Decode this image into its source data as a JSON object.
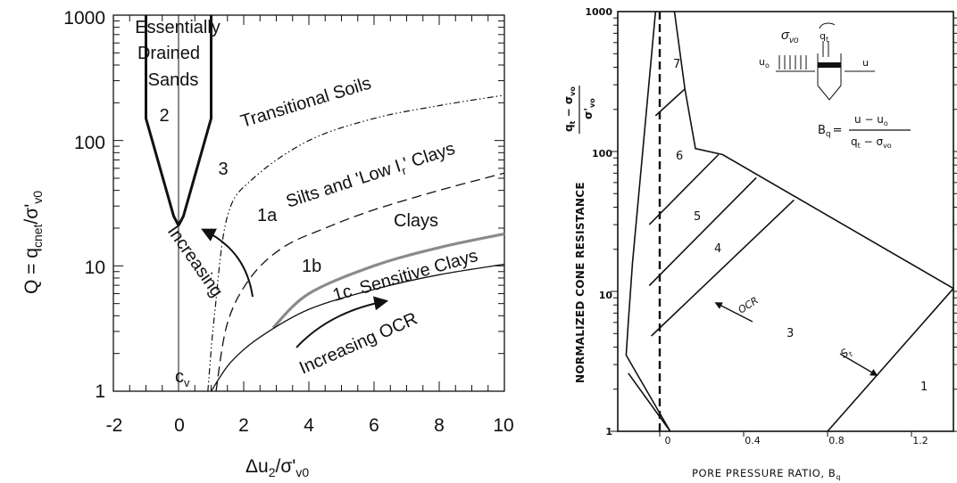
{
  "chart_data": [
    {
      "type": "line",
      "title": "",
      "xlabel_main": "Δu",
      "xlabel_sub1": "2",
      "xlabel_mid": "/σ'",
      "xlabel_sub2": "v0",
      "ylabel_main": "Q = q",
      "ylabel_sub1": "cnet",
      "ylabel_mid": "/σ'",
      "ylabel_sub2": "v0",
      "yscale": "log",
      "xlim": [
        -2,
        10
      ],
      "ylim": [
        1,
        1000
      ],
      "x_ticks": [
        "-2",
        "0",
        "2",
        "4",
        "6",
        "8",
        "10"
      ],
      "x_tick_values": [
        -2,
        0,
        2,
        4,
        6,
        8,
        10
      ],
      "y_ticks": [
        "1",
        "10",
        "100",
        "1000"
      ],
      "y_tick_values": [
        1,
        10,
        100,
        1000
      ],
      "zone_labels": {
        "essentially": "Essentially",
        "drained": "Drained",
        "sands": "Sands",
        "zone2": "2",
        "zone3": "3",
        "transitional": "Transitional Soils",
        "zone1a": "1a",
        "silts": "Silts and 'Low I",
        "silts_sub": "r",
        "silts_end": "' Clays",
        "clays": "Clays",
        "zone1b": "1b",
        "zone1c": "1c",
        "sensitive": "Sensitive Clays",
        "increasing_cv": "Increasing",
        "cv_main": "c",
        "cv_sub": "v",
        "increasing_ocr": "Increasing OCR"
      },
      "boundaries": {
        "zone2_left": [
          {
            "x": -1.0,
            "y": 1000
          },
          {
            "x": -1.0,
            "y": 150
          },
          {
            "x": -0.15,
            "y": 25
          },
          {
            "x": 0,
            "y": 21
          }
        ],
        "zone2_right": [
          {
            "x": 1.0,
            "y": 1000
          },
          {
            "x": 1.0,
            "y": 150
          },
          {
            "x": 0.15,
            "y": 25
          },
          {
            "x": 0,
            "y": 21
          }
        ],
        "zero_line": [
          {
            "x": 0,
            "y": 1
          },
          {
            "x": 0,
            "y": 1000
          }
        ],
        "transitional_dashdot": [
          {
            "x": 0.9,
            "y": 1
          },
          {
            "x": 1.1,
            "y": 4
          },
          {
            "x": 1.5,
            "y": 25
          },
          {
            "x": 2.3,
            "y": 50
          },
          {
            "x": 4,
            "y": 100
          },
          {
            "x": 6,
            "y": 150
          },
          {
            "x": 8,
            "y": 190
          },
          {
            "x": 10,
            "y": 230
          }
        ],
        "clays_dashed": [
          {
            "x": 1.15,
            "y": 1
          },
          {
            "x": 1.5,
            "y": 3.5
          },
          {
            "x": 2.2,
            "y": 8
          },
          {
            "x": 3.2,
            "y": 14
          },
          {
            "x": 4.5,
            "y": 20
          },
          {
            "x": 6,
            "y": 28
          },
          {
            "x": 8,
            "y": 40
          },
          {
            "x": 10,
            "y": 55
          }
        ],
        "sensitive_grey": [
          {
            "x": 2.9,
            "y": 3.2
          },
          {
            "x": 4,
            "y": 6
          },
          {
            "x": 6,
            "y": 10
          },
          {
            "x": 8,
            "y": 14
          },
          {
            "x": 10,
            "y": 18
          }
        ],
        "lower_solid": [
          {
            "x": 1.0,
            "y": 1
          },
          {
            "x": 1.6,
            "y": 1.7
          },
          {
            "x": 2.5,
            "y": 2.7
          },
          {
            "x": 4,
            "y": 4.5
          },
          {
            "x": 6,
            "y": 6.5
          },
          {
            "x": 8,
            "y": 8.5
          },
          {
            "x": 10,
            "y": 10.3
          }
        ]
      }
    },
    {
      "type": "line",
      "title": "",
      "xlabel": "PORE PRESSURE RATIO, B",
      "xlabel_sub": "q",
      "ylabel": "NORMALIZED CONE RESISTANCE",
      "ylabel_frac_num": "q",
      "ylabel_frac_num_sub": "t",
      "ylabel_frac_num_mid": " − σ",
      "ylabel_frac_num_sub2": "vo",
      "ylabel_frac_den": "σ'",
      "ylabel_frac_den_sub": "vo",
      "yscale": "log",
      "xlim": [
        -0.2,
        1.4
      ],
      "ylim": [
        1,
        1000
      ],
      "x_ticks": [
        "0",
        "0.4",
        "0.8",
        "1.2"
      ],
      "x_tick_values": [
        0,
        0.4,
        0.8,
        1.2
      ],
      "y_ticks": [
        "1",
        "10",
        "100",
        "1000"
      ],
      "y_tick_values": [
        1,
        10,
        100,
        1000
      ],
      "zone_labels": {
        "z1": "1",
        "z3": "3",
        "z4": "4",
        "z5": "5",
        "z6": "6",
        "z7": "7",
        "ocr": "OCR",
        "st_main": "S",
        "st_sub": "t"
      },
      "formula": {
        "bq_main": "B",
        "bq_sub": "q",
        "eq": "=",
        "numerator": "u − u",
        "numerator_sub": "o",
        "denominator": "q",
        "denominator_sub": "t",
        "denominator_mid": " − σ",
        "denominator_sub2": "vo",
        "sigma_main": "σ",
        "sigma_sub": "vo",
        "qt_main": "q",
        "qt_sub": "t",
        "uo_main": "u",
        "uo_sub": "o",
        "u_label": "u"
      },
      "boundaries": {
        "outer_left": [
          {
            "x": -0.02,
            "y": 1000
          },
          {
            "x": -0.13,
            "y": 16
          },
          {
            "x": -0.15,
            "y": 6
          },
          {
            "x": -0.16,
            "y": 3.5
          },
          {
            "x": 0.05,
            "y": 1
          }
        ],
        "outer_top": [
          {
            "x": 0.07,
            "y": 1000
          },
          {
            "x": 0.12,
            "y": 280
          },
          {
            "x": 0.17,
            "y": 105
          },
          {
            "x": 0.3,
            "y": 95
          },
          {
            "x": 1.4,
            "y": 10.5
          }
        ],
        "upper_right": [
          {
            "x": 0.07,
            "y": 1000
          },
          {
            "x": 0.12,
            "y": 280
          }
        ],
        "b7": [
          {
            "x": -0.02,
            "y": 180
          },
          {
            "x": 0.12,
            "y": 280
          }
        ],
        "b6": [
          {
            "x": -0.05,
            "y": 30
          },
          {
            "x": 0.28,
            "y": 95
          }
        ],
        "b5": [
          {
            "x": -0.05,
            "y": 11
          },
          {
            "x": 0.46,
            "y": 65
          }
        ],
        "b4": [
          {
            "x": -0.04,
            "y": 4.8
          },
          {
            "x": 0.64,
            "y": 45
          }
        ],
        "b3_bottom": [
          {
            "x": -0.15,
            "y": 2.6
          },
          {
            "x": 0.05,
            "y": 1
          }
        ],
        "b1": [
          {
            "x": 0.8,
            "y": 1
          },
          {
            "x": 1.4,
            "y": 10.5
          }
        ],
        "zero_dashed": [
          {
            "x": 0,
            "y": 1
          },
          {
            "x": 0,
            "y": 1000
          }
        ]
      }
    }
  ]
}
